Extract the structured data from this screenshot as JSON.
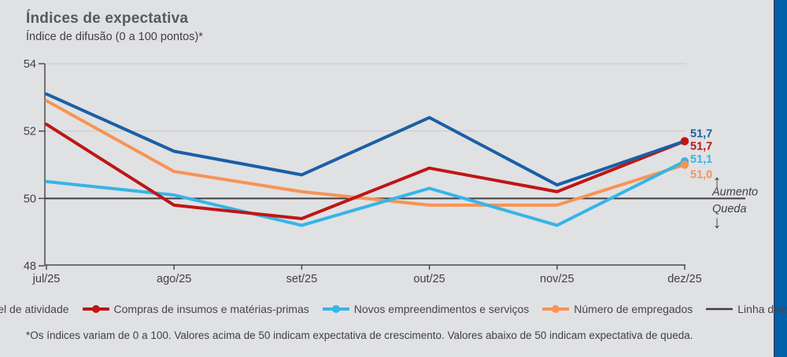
{
  "page": {
    "background": "#e0e1e3",
    "accent_bar_color": "#0061ab",
    "accent_bar_border": "#25486e"
  },
  "header": {
    "title": "Índices de expectativa",
    "subtitle": "Índice de difusão (0 a 100 pontos)*"
  },
  "chart_data": {
    "type": "line",
    "categories": [
      "jul/25",
      "ago/25",
      "set/25",
      "out/25",
      "nov/25",
      "dez/25"
    ],
    "series": [
      {
        "name": "Nível de atividade",
        "color": "#1a5fa6",
        "values": [
          53.1,
          51.4,
          50.7,
          52.4,
          50.4,
          51.7
        ],
        "end_label": "51,7"
      },
      {
        "name": "Compras de insumos e matérias-primas",
        "color": "#c01515",
        "values": [
          52.2,
          49.8,
          49.4,
          50.9,
          50.2,
          51.7
        ],
        "end_label": "51,7"
      },
      {
        "name": "Novos empreendimentos e serviços",
        "color": "#36b5e6",
        "values": [
          50.5,
          50.1,
          49.2,
          50.3,
          49.2,
          51.1
        ],
        "end_label": "51,1"
      },
      {
        "name": "Número de empregados",
        "color": "#f79454",
        "values": [
          52.9,
          50.8,
          50.2,
          49.8,
          49.8,
          51.0
        ],
        "end_label": "51,0"
      }
    ],
    "divider": {
      "name": "Linha divisória",
      "value": 50,
      "color": "#3f3f41"
    },
    "ylim": [
      48,
      54
    ],
    "yticks": [
      48,
      50,
      52,
      54
    ],
    "grid_values": [
      52,
      54
    ],
    "legend_position": "bottom",
    "grid": "horizontal-only",
    "annotations": {
      "above_label": "Aumento",
      "below_label": "Queda",
      "up_arrow": "↑",
      "down_arrow": "↓"
    },
    "axis_color": "#4b4b4d",
    "grid_color": "#c7c8ca",
    "tick_label_color": "#414042"
  },
  "footnote": "*Os índices variam de 0 a 100. Valores acima de 50 indicam expectativa de crescimento. Valores abaixo de 50 indicam expectativa de queda."
}
